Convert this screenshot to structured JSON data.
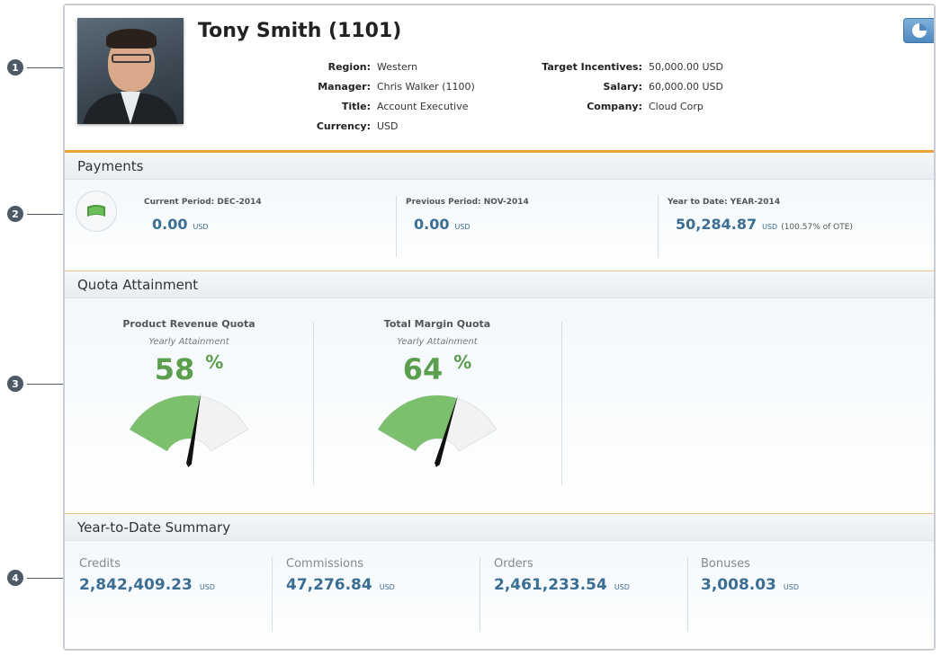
{
  "callouts": [
    "1",
    "2",
    "3",
    "4"
  ],
  "profile": {
    "name": "Tony Smith (1101)",
    "left_fields": [
      {
        "label": "Region:",
        "value": "Western"
      },
      {
        "label": "Manager:",
        "value": "Chris Walker (1100)"
      },
      {
        "label": "Title:",
        "value": "Account Executive"
      },
      {
        "label": "Currency:",
        "value": "USD"
      }
    ],
    "right_fields": [
      {
        "label": "Target Incentives:",
        "value": "50,000.00 USD"
      },
      {
        "label": "Salary:",
        "value": "60,000.00 USD"
      },
      {
        "label": "Company:",
        "value": "Cloud Corp"
      }
    ],
    "chart_button_icon": "pie-chart-icon"
  },
  "payments": {
    "header": "Payments",
    "icon": "money-icon",
    "columns": [
      {
        "label": "Current Period: DEC-2014",
        "value": "0.00",
        "unit": "USD",
        "note": ""
      },
      {
        "label": "Previous Period: NOV-2014",
        "value": "0.00",
        "unit": "USD",
        "note": ""
      },
      {
        "label": "Year to Date: YEAR-2014",
        "value": "50,284.87",
        "unit": "USD",
        "note": "(100.57% of OTE)"
      }
    ]
  },
  "quota": {
    "header": "Quota Attainment",
    "gauges": [
      {
        "title": "Product Revenue Quota",
        "subtitle": "Yearly Attainment",
        "percent": 58,
        "percent_sign": "%"
      },
      {
        "title": "Total Margin Quota",
        "subtitle": "Yearly Attainment",
        "percent": 64,
        "percent_sign": "%"
      }
    ],
    "colors": {
      "fill": "#7cc06e",
      "track": "#f2f2f2",
      "needle": "#111111"
    }
  },
  "ytd": {
    "header": "Year-to-Date Summary",
    "columns": [
      {
        "label": "Credits",
        "value": "2,842,409.23",
        "unit": "USD"
      },
      {
        "label": "Commissions",
        "value": "47,276.84",
        "unit": "USD"
      },
      {
        "label": "Orders",
        "value": "2,461,233.54",
        "unit": "USD"
      },
      {
        "label": "Bonuses",
        "value": "3,008.03",
        "unit": "USD"
      }
    ]
  },
  "colors": {
    "accent": "#f0a33a",
    "value": "#3b6e93",
    "percent": "#5a9e4e"
  }
}
